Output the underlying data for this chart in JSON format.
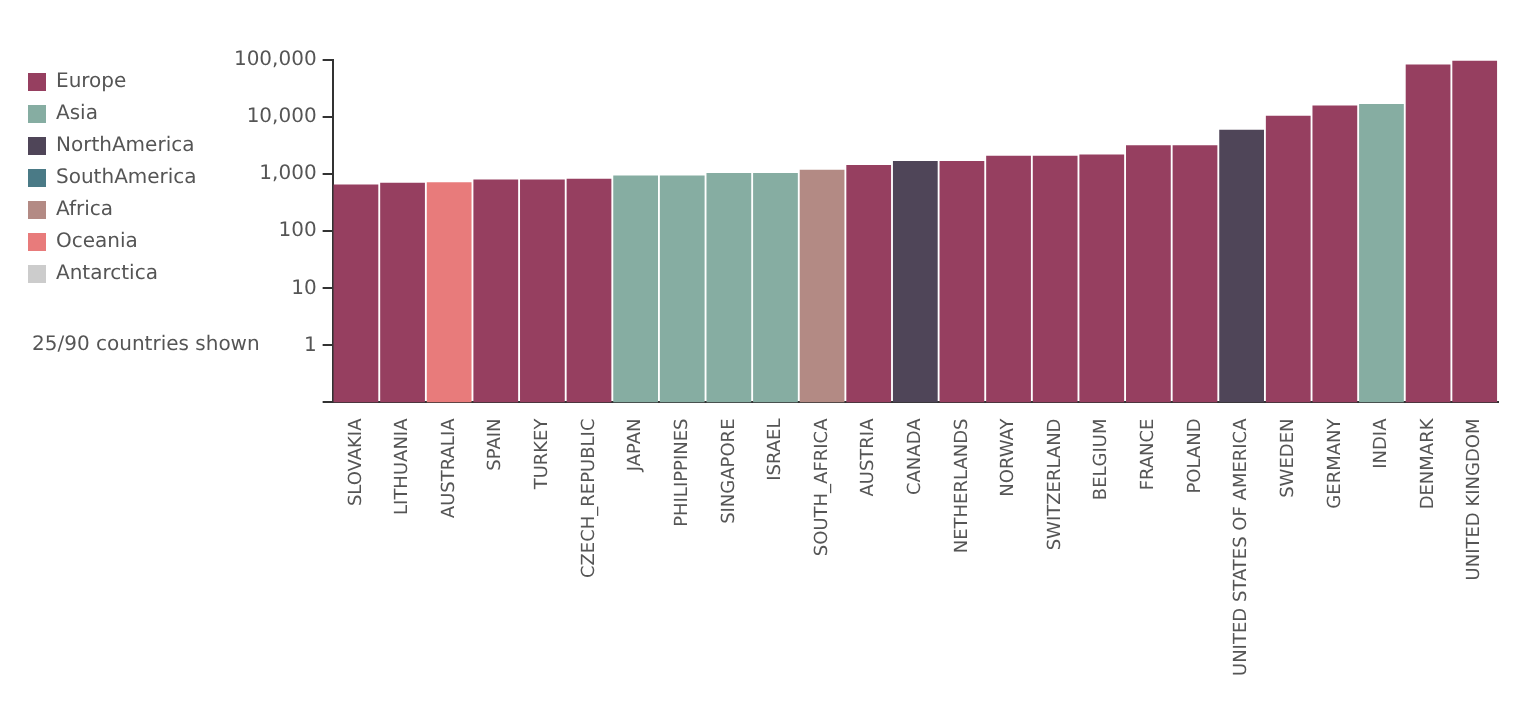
{
  "chart_data": {
    "type": "bar",
    "categories": [
      "SLOVAKIA",
      "LITHUANIA",
      "AUSTRALIA",
      "SPAIN",
      "TURKEY",
      "CZECH_REPUBLIC",
      "JAPAN",
      "PHILIPPINES",
      "SINGAPORE",
      "ISRAEL",
      "SOUTH_AFRICA",
      "AUSTRIA",
      "CANADA",
      "NETHERLANDS",
      "NORWAY",
      "SWITZERLAND",
      "BELGIUM",
      "FRANCE",
      "POLAND",
      "UNITED STATES OF AMERICA",
      "SWEDEN",
      "GERMANY",
      "INDIA",
      "DENMARK",
      "UNITED KINGDOM"
    ],
    "stacked": true,
    "series": [
      {
        "name": "Europe",
        "color": "#963f60",
        "values": [
          660,
          710,
          null,
          810,
          810,
          830,
          null,
          null,
          null,
          null,
          null,
          1450,
          null,
          1700,
          2100,
          2100,
          2200,
          3200,
          3200,
          null,
          10500,
          16000,
          null,
          83000,
          97000
        ]
      },
      {
        "name": "Asia",
        "color": "#86ada2",
        "values": [
          null,
          null,
          null,
          null,
          null,
          null,
          950,
          950,
          1050,
          1050,
          null,
          null,
          null,
          null,
          null,
          null,
          null,
          null,
          null,
          null,
          null,
          null,
          17000,
          null,
          null
        ]
      },
      {
        "name": "NorthAmerica",
        "color": "#4f4558",
        "values": [
          null,
          null,
          null,
          null,
          null,
          null,
          null,
          null,
          null,
          null,
          null,
          null,
          1700,
          null,
          null,
          null,
          null,
          null,
          null,
          6000,
          null,
          null,
          null,
          null,
          null
        ]
      },
      {
        "name": "SouthAmerica",
        "color": "#4a7a86",
        "values": [
          null,
          null,
          null,
          null,
          null,
          null,
          null,
          null,
          null,
          null,
          null,
          null,
          null,
          null,
          null,
          null,
          null,
          null,
          null,
          null,
          null,
          null,
          null,
          null,
          null
        ]
      },
      {
        "name": "Africa",
        "color": "#b38a84",
        "values": [
          null,
          null,
          null,
          null,
          null,
          null,
          null,
          null,
          null,
          null,
          1200,
          null,
          null,
          null,
          null,
          null,
          null,
          null,
          null,
          null,
          null,
          null,
          null,
          null,
          null
        ]
      },
      {
        "name": "Oceania",
        "color": "#e87b7b",
        "values": [
          null,
          null,
          720,
          null,
          null,
          null,
          null,
          null,
          null,
          null,
          null,
          null,
          null,
          null,
          null,
          null,
          null,
          null,
          null,
          null,
          null,
          null,
          null,
          null,
          null
        ]
      },
      {
        "name": "Antarctica",
        "color": "#cccccc",
        "values": [
          null,
          null,
          null,
          null,
          null,
          null,
          null,
          null,
          null,
          null,
          null,
          null,
          null,
          null,
          null,
          null,
          null,
          null,
          null,
          null,
          null,
          null,
          null,
          null,
          null
        ]
      }
    ],
    "log": "y",
    "ylim": [
      0.1,
      100000
    ],
    "yticks": [
      {
        "value": 0.1,
        "label": null
      },
      1,
      10,
      100,
      {
        "value": 1000,
        "label": "1,000"
      },
      {
        "value": 10000,
        "label": "10,000"
      },
      {
        "value": 100000,
        "label": "100,000"
      }
    ],
    "grid": false,
    "legend": "left",
    "annotations": [
      "25/90 countries shown"
    ]
  }
}
